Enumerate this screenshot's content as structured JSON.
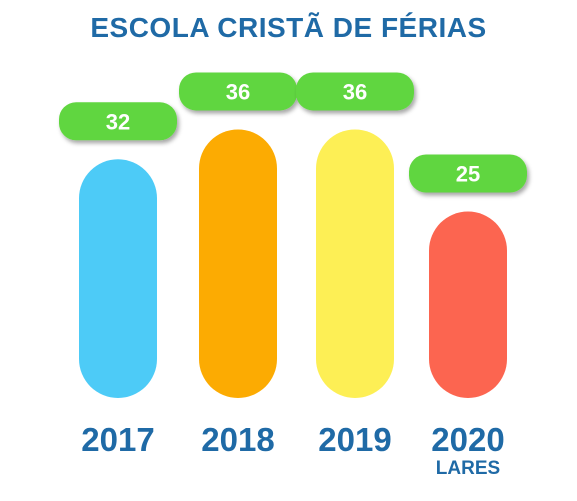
{
  "chart_data": {
    "type": "bar",
    "title": "ESCOLA CRISTÃ DE FÉRIAS",
    "categories": [
      "2017",
      "2018",
      "2019",
      "2020"
    ],
    "category_sublabels": [
      "",
      "",
      "",
      "LARES"
    ],
    "values": [
      32,
      36,
      36,
      25
    ],
    "bar_colors": [
      "#4dcbf7",
      "#fcab02",
      "#fdef55",
      "#fc6550"
    ],
    "label_bg_color": "#61d63f",
    "label_text_color": "#ffffff",
    "text_color": "#1f6aa6"
  }
}
